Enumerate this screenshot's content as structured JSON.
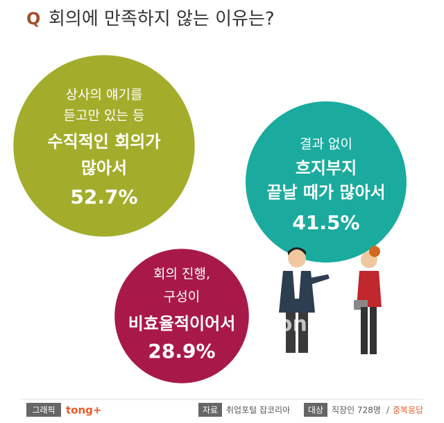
{
  "chart_data": {
    "type": "bubble",
    "title_prefix": "Q",
    "title": "회의에 만족하지 않는 이유는?",
    "categories": [
      [
        "상사의 얘기를",
        "듣고만 있는 등",
        "수직적인 회의가",
        "많아서"
      ],
      [
        "결과 없이",
        "흐지부지",
        "끝날 때가 많아서"
      ],
      [
        "회의 진행,",
        "구성이",
        "비효율적이어서"
      ]
    ],
    "values": [
      52.7,
      41.5,
      28.9
    ],
    "value_labels": [
      "52.7%",
      "41.5%",
      "28.9%"
    ],
    "colors": [
      "#a3ad2b",
      "#1aab9e",
      "#a8194a"
    ]
  },
  "footer": {
    "graphic_label": "그래픽",
    "brand": "tong+",
    "watermark": "tong+",
    "source_label": "자료",
    "source": "취업포털 잡코리아",
    "target_label": "대상",
    "target": "직장인 728명",
    "separator": "/",
    "note": "중복응답"
  }
}
